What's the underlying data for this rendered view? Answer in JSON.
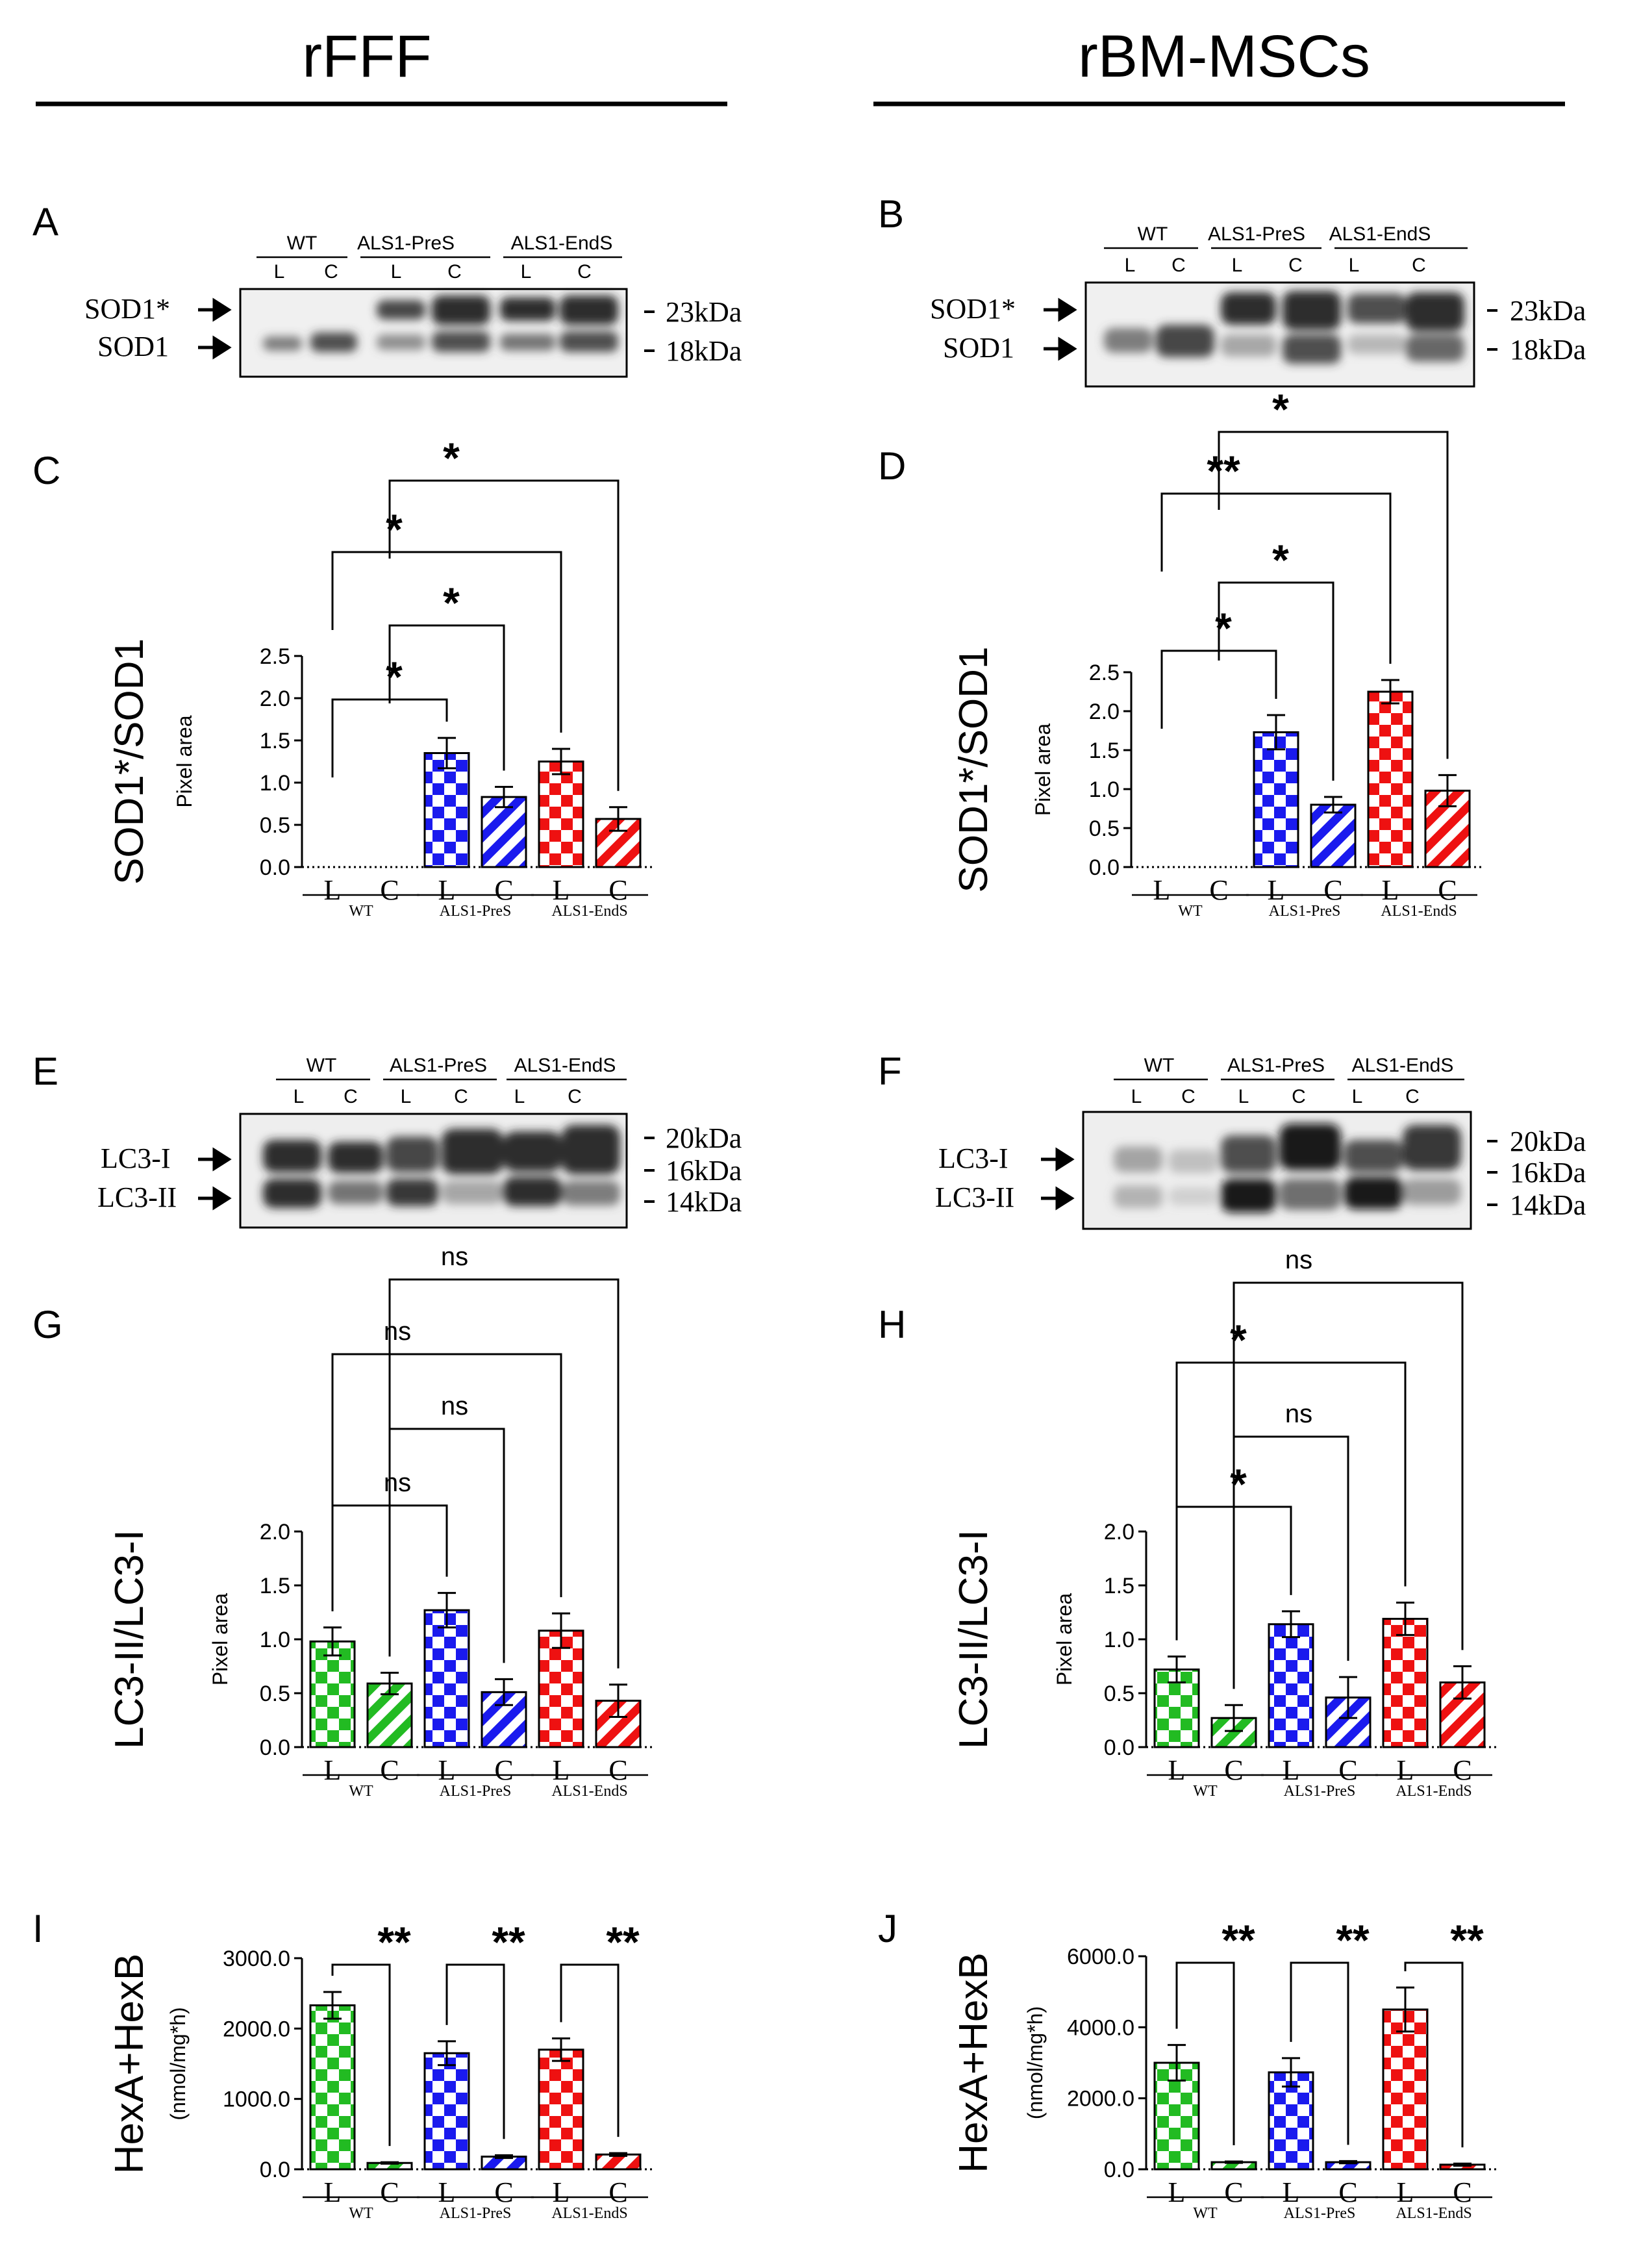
{
  "columns": {
    "left_title": "rFFF",
    "right_title": "rBM-MSCs"
  },
  "colors": {
    "wt": "#22bb22",
    "pres": "#1a1aee",
    "ends": "#ee1111",
    "ink": "#000000"
  },
  "blots": [
    {
      "panel": "A",
      "groups": [
        "WT",
        "ALS1-PreS",
        "ALS1-EndS"
      ],
      "lanes": [
        "L",
        "C",
        "L",
        "C",
        "L",
        "C"
      ],
      "bands": [
        {
          "label": "SOD1*",
          "marker": "23kDa"
        },
        {
          "label": "SOD1",
          "marker": "18kDa"
        }
      ]
    },
    {
      "panel": "B",
      "groups": [
        "WT",
        "ALS1-PreS",
        "ALS1-EndS"
      ],
      "lanes": [
        "L",
        "C",
        "L",
        "C",
        "L",
        "C"
      ],
      "bands": [
        {
          "label": "SOD1*",
          "marker": "23kDa"
        },
        {
          "label": "SOD1",
          "marker": "18kDa"
        }
      ]
    },
    {
      "panel": "E",
      "groups": [
        "WT",
        "ALS1-PreS",
        "ALS1-EndS"
      ],
      "lanes": [
        "L",
        "C",
        "L",
        "C",
        "L",
        "C"
      ],
      "markers": [
        "20kDa",
        "16kDa",
        "14kDa"
      ],
      "bands": [
        {
          "label": "LC3-I"
        },
        {
          "label": "LC3-II"
        }
      ]
    },
    {
      "panel": "F",
      "groups": [
        "WT",
        "ALS1-PreS",
        "ALS1-EndS"
      ],
      "lanes": [
        "L",
        "C",
        "L",
        "C",
        "L",
        "C"
      ],
      "markers": [
        "20kDa",
        "16kDa",
        "14kDa"
      ],
      "bands": [
        {
          "label": "LC3-I"
        },
        {
          "label": "LC3-II"
        }
      ]
    }
  ],
  "chart_data": [
    {
      "panel": "C",
      "type": "bar",
      "title": "",
      "ylabel_outer": "SOD1*/SOD1",
      "ylabel": "Pixel area",
      "categories": [
        "L",
        "C",
        "L",
        "C",
        "L",
        "C"
      ],
      "groups": [
        "WT",
        "ALS1-PreS",
        "ALS1-EndS"
      ],
      "values": [
        0,
        0,
        1.35,
        0.83,
        1.25,
        0.57
      ],
      "errors": [
        0,
        0,
        0.18,
        0.12,
        0.15,
        0.14
      ],
      "ylim": [
        0,
        2.5
      ],
      "yticks": [
        "0.0",
        "0.5",
        "1.0",
        "1.5",
        "2.0",
        "2.5"
      ],
      "significance": [
        {
          "from": 0,
          "to": 2,
          "label": "*"
        },
        {
          "from": 1,
          "to": 3,
          "label": "*"
        },
        {
          "from": 0,
          "to": 4,
          "label": "*"
        },
        {
          "from": 1,
          "to": 5,
          "label": "*"
        }
      ]
    },
    {
      "panel": "D",
      "type": "bar",
      "title": "",
      "ylabel_outer": "SOD1*/SOD1",
      "ylabel": "Pixel area",
      "categories": [
        "L",
        "C",
        "L",
        "C",
        "L",
        "C"
      ],
      "groups": [
        "WT",
        "ALS1-PreS",
        "ALS1-EndS"
      ],
      "values": [
        0,
        0,
        1.73,
        0.8,
        2.25,
        0.98
      ],
      "errors": [
        0,
        0,
        0.22,
        0.1,
        0.15,
        0.2
      ],
      "ylim": [
        0,
        2.5
      ],
      "yticks": [
        "0.0",
        "0.5",
        "1.0",
        "1.5",
        "2.0",
        "2.5"
      ],
      "significance": [
        {
          "from": 0,
          "to": 2,
          "label": "*"
        },
        {
          "from": 1,
          "to": 3,
          "label": "*"
        },
        {
          "from": 0,
          "to": 4,
          "label": "**"
        },
        {
          "from": 1,
          "to": 5,
          "label": "*"
        }
      ]
    },
    {
      "panel": "G",
      "type": "bar",
      "title": "",
      "ylabel_outer": "LC3-II/LC3-I",
      "ylabel": "Pixel area",
      "categories": [
        "L",
        "C",
        "L",
        "C",
        "L",
        "C"
      ],
      "groups": [
        "WT",
        "ALS1-PreS",
        "ALS1-EndS"
      ],
      "values": [
        0.98,
        0.59,
        1.27,
        0.51,
        1.08,
        0.43
      ],
      "errors": [
        0.13,
        0.1,
        0.16,
        0.12,
        0.16,
        0.15
      ],
      "ylim": [
        0,
        2.0
      ],
      "yticks": [
        "0.0",
        "0.5",
        "1.0",
        "1.5",
        "2.0"
      ],
      "significance": [
        {
          "from": 0,
          "to": 2,
          "label": "ns"
        },
        {
          "from": 1,
          "to": 3,
          "label": "ns"
        },
        {
          "from": 0,
          "to": 4,
          "label": "ns"
        },
        {
          "from": 1,
          "to": 5,
          "label": "ns"
        }
      ]
    },
    {
      "panel": "H",
      "type": "bar",
      "title": "",
      "ylabel_outer": "LC3-II/LC3-I",
      "ylabel": "Pixel area",
      "categories": [
        "L",
        "C",
        "L",
        "C",
        "L",
        "C"
      ],
      "groups": [
        "WT",
        "ALS1-PreS",
        "ALS1-EndS"
      ],
      "values": [
        0.72,
        0.27,
        1.14,
        0.46,
        1.19,
        0.6
      ],
      "errors": [
        0.12,
        0.12,
        0.12,
        0.19,
        0.15,
        0.15
      ],
      "ylim": [
        0,
        2.0
      ],
      "yticks": [
        "0.0",
        "0.5",
        "1.0",
        "1.5",
        "2.0"
      ],
      "significance": [
        {
          "from": 0,
          "to": 2,
          "label": "*"
        },
        {
          "from": 1,
          "to": 3,
          "label": "ns"
        },
        {
          "from": 0,
          "to": 4,
          "label": "*"
        },
        {
          "from": 1,
          "to": 5,
          "label": "ns"
        }
      ]
    },
    {
      "panel": "I",
      "type": "bar",
      "title": "",
      "ylabel_outer": "HexA+HexB",
      "ylabel": "(nmol/mg*h)",
      "categories": [
        "L",
        "C",
        "L",
        "C",
        "L",
        "C"
      ],
      "groups": [
        "WT",
        "ALS1-PreS",
        "ALS1-EndS"
      ],
      "values": [
        2330,
        90,
        1650,
        180,
        1700,
        210
      ],
      "errors": [
        190,
        10,
        170,
        20,
        160,
        20
      ],
      "ylim": [
        0,
        3000
      ],
      "yticks": [
        "0.0",
        "1000.0",
        "2000.0",
        "3000.0"
      ],
      "significance": [
        {
          "from": 0,
          "to": 1,
          "label": "**"
        },
        {
          "from": 2,
          "to": 3,
          "label": "**"
        },
        {
          "from": 4,
          "to": 5,
          "label": "**"
        }
      ]
    },
    {
      "panel": "J",
      "type": "bar",
      "title": "",
      "ylabel_outer": "HexA+HexB",
      "ylabel": "(nmol/mg*h)",
      "categories": [
        "L",
        "C",
        "L",
        "C",
        "L",
        "C"
      ],
      "groups": [
        "WT",
        "ALS1-PreS",
        "ALS1-EndS"
      ],
      "values": [
        3000,
        200,
        2730,
        200,
        4500,
        130
      ],
      "errors": [
        500,
        20,
        400,
        30,
        620,
        30
      ],
      "ylim": [
        0,
        6000
      ],
      "yticks": [
        "0.0",
        "2000.0",
        "4000.0",
        "6000.0"
      ],
      "significance": [
        {
          "from": 0,
          "to": 1,
          "label": "**"
        },
        {
          "from": 2,
          "to": 3,
          "label": "**"
        },
        {
          "from": 4,
          "to": 5,
          "label": "**"
        }
      ]
    }
  ]
}
